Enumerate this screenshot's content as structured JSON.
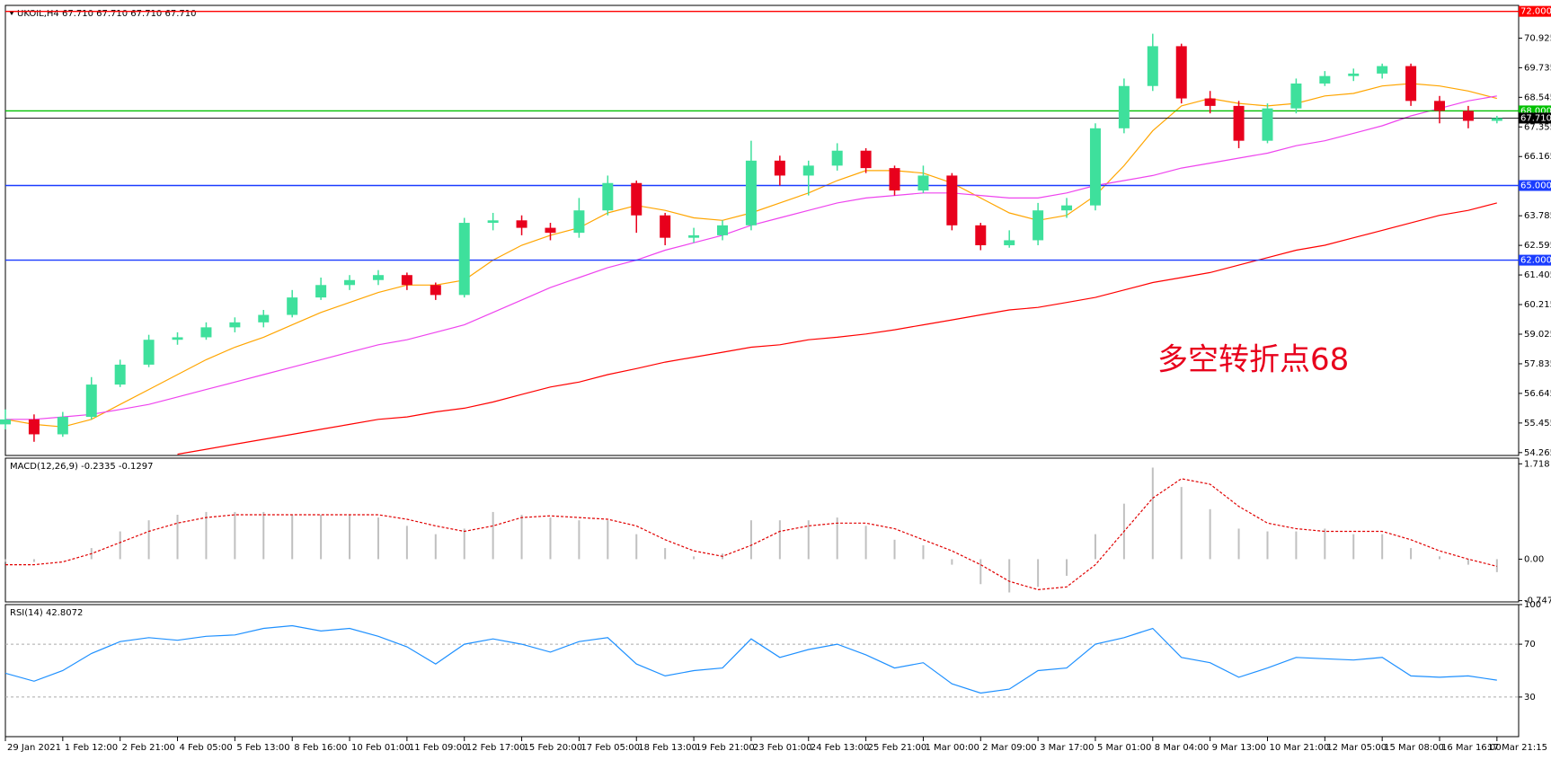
{
  "chart_data": [
    {
      "type": "candlestick",
      "title": "UKOIL,H4  67.710 67.710 67.710 67.710",
      "categories": [
        "29 Jan 2021",
        null,
        "1 Feb 12:00",
        null,
        "2 Feb 21:00",
        null,
        "4 Feb 05:00",
        null,
        "5 Feb 13:00",
        null,
        "8 Feb 16:00",
        null,
        "10 Feb 01:00",
        null,
        "11 Feb 09:00",
        null,
        "12 Feb 17:00",
        null,
        "15 Feb 20:00",
        null,
        "17 Feb 05:00",
        null,
        "18 Feb 13:00",
        null,
        "19 Feb 21:00",
        null,
        "23 Feb 01:00",
        null,
        "24 Feb 13:00",
        null,
        "25 Feb 21:00",
        null,
        "1 Mar 00:00",
        null,
        "2 Mar 09:00",
        null,
        "3 Mar 17:00",
        null,
        "5 Mar 01:00",
        null,
        "8 Mar 04:00",
        null,
        "9 Mar 13:00",
        null,
        "10 Mar 21:00",
        null,
        "12 Mar 05:00",
        null,
        "15 Mar 08:00",
        null,
        "16 Mar 16:00",
        null,
        "17 Mar 21:15"
      ],
      "open": [
        55.4,
        55.6,
        55.0,
        55.7,
        57.0,
        57.8,
        58.8,
        58.9,
        59.3,
        59.5,
        59.8,
        60.5,
        61.0,
        61.2,
        61.4,
        61.0,
        60.6,
        63.5,
        63.6,
        63.3,
        63.1,
        64.0,
        65.1,
        63.8,
        62.9,
        63.0,
        63.4,
        66.0,
        65.4,
        65.8,
        66.4,
        65.7,
        64.8,
        65.4,
        63.4,
        62.6,
        62.8,
        64.0,
        64.2,
        67.3,
        69.0,
        70.6,
        68.5,
        68.2,
        66.8,
        68.1,
        69.1,
        69.4,
        69.5,
        69.8,
        68.4,
        68.0,
        67.6
      ],
      "high": [
        56.0,
        55.8,
        55.9,
        57.3,
        58.0,
        59.0,
        59.1,
        59.5,
        59.7,
        60.0,
        60.8,
        61.3,
        61.4,
        61.6,
        61.5,
        61.1,
        63.7,
        63.9,
        63.8,
        63.5,
        64.5,
        65.4,
        65.2,
        63.9,
        63.3,
        63.6,
        66.8,
        66.2,
        66.0,
        66.7,
        66.5,
        65.8,
        65.8,
        65.5,
        63.5,
        63.2,
        64.3,
        64.5,
        67.5,
        69.3,
        71.1,
        70.7,
        68.8,
        68.4,
        68.3,
        69.3,
        69.6,
        69.7,
        69.9,
        69.9,
        68.6,
        68.2,
        67.8
      ],
      "low": [
        55.2,
        54.7,
        54.9,
        55.6,
        56.9,
        57.7,
        58.6,
        58.8,
        59.1,
        59.3,
        59.7,
        60.4,
        60.8,
        61.0,
        60.8,
        60.4,
        60.5,
        63.2,
        63.0,
        62.8,
        62.9,
        63.8,
        63.1,
        62.6,
        62.7,
        62.8,
        63.2,
        65.0,
        64.6,
        65.6,
        65.5,
        64.6,
        64.7,
        63.2,
        62.4,
        62.5,
        62.6,
        63.7,
        64.0,
        67.1,
        68.8,
        68.3,
        67.9,
        66.5,
        66.7,
        67.9,
        69.0,
        69.2,
        69.3,
        68.2,
        67.5,
        67.3,
        67.5
      ],
      "close": [
        55.6,
        55.0,
        55.7,
        57.0,
        57.8,
        58.8,
        58.9,
        59.3,
        59.5,
        59.8,
        60.5,
        61.0,
        61.2,
        61.4,
        61.0,
        60.6,
        63.5,
        63.6,
        63.3,
        63.1,
        64.0,
        65.1,
        63.8,
        62.9,
        63.0,
        63.4,
        66.0,
        65.4,
        65.8,
        66.4,
        65.7,
        64.8,
        65.4,
        63.4,
        62.6,
        62.8,
        64.0,
        64.2,
        67.3,
        69.0,
        70.6,
        68.5,
        68.2,
        66.8,
        68.1,
        69.1,
        69.4,
        69.5,
        69.8,
        68.4,
        68.0,
        67.6,
        67.71
      ],
      "up_color": "#3ee09c",
      "down_color": "#e8001c",
      "lines": [
        {
          "color": "#ffa500",
          "values": [
            55.6,
            55.4,
            55.3,
            55.6,
            56.2,
            56.8,
            57.4,
            58.0,
            58.5,
            58.9,
            59.4,
            59.9,
            60.3,
            60.7,
            61.0,
            61.0,
            61.2,
            62.0,
            62.6,
            63.0,
            63.3,
            63.9,
            64.2,
            64.0,
            63.7,
            63.6,
            63.9,
            64.3,
            64.7,
            65.2,
            65.6,
            65.6,
            65.5,
            65.1,
            64.5,
            63.9,
            63.6,
            63.8,
            64.6,
            65.8,
            67.2,
            68.2,
            68.5,
            68.3,
            68.2,
            68.3,
            68.6,
            68.7,
            69.0,
            69.1,
            69.0,
            68.8,
            68.5
          ]
        },
        {
          "color": "#ee44ee",
          "values": [
            55.6,
            55.6,
            55.7,
            55.8,
            56.0,
            56.2,
            56.5,
            56.8,
            57.1,
            57.4,
            57.7,
            58.0,
            58.3,
            58.6,
            58.8,
            59.1,
            59.4,
            59.9,
            60.4,
            60.9,
            61.3,
            61.7,
            62.0,
            62.4,
            62.7,
            63.0,
            63.4,
            63.7,
            64.0,
            64.3,
            64.5,
            64.6,
            64.7,
            64.7,
            64.6,
            64.5,
            64.5,
            64.7,
            65.0,
            65.2,
            65.4,
            65.7,
            65.9,
            66.1,
            66.3,
            66.6,
            66.8,
            67.1,
            67.4,
            67.8,
            68.1,
            68.4,
            68.6
          ]
        },
        {
          "color": "#ff0000",
          "values": [
            null,
            null,
            null,
            null,
            null,
            null,
            54.2,
            54.4,
            54.6,
            54.8,
            55.0,
            55.2,
            55.4,
            55.6,
            55.7,
            55.9,
            56.05,
            56.3,
            56.6,
            56.9,
            57.1,
            57.4,
            57.64,
            57.9,
            58.1,
            58.3,
            58.5,
            58.6,
            58.8,
            58.9,
            59.03,
            59.2,
            59.4,
            59.6,
            59.8,
            60.0,
            60.1,
            60.3,
            60.5,
            60.8,
            61.1,
            61.3,
            61.5,
            61.8,
            62.1,
            62.4,
            62.6,
            62.9,
            63.2,
            63.5,
            63.8,
            64.0,
            64.3
          ]
        }
      ],
      "levels": [
        {
          "value": 72,
          "label": "72.000",
          "color": "#ff0000"
        },
        {
          "value": 68,
          "label": "68.000",
          "color": "#00c000"
        },
        {
          "value": 65,
          "label": "65.000",
          "color": "#1a3cff"
        },
        {
          "value": 62,
          "label": "62.000",
          "color": "#1a3cff"
        },
        {
          "value": 67.71,
          "label": "67.710",
          "color": "#000000"
        }
      ],
      "annotation": "多空转折点68",
      "annotation_color": "#e8001c",
      "ylim": [
        54.15,
        72.24
      ],
      "yticks": [
        70.925,
        69.735,
        68.545,
        67.355,
        66.165,
        64.975,
        63.785,
        62.595,
        61.405,
        60.215,
        59.025,
        57.835,
        56.645,
        55.455,
        54.265
      ]
    },
    {
      "type": "macd",
      "title": "MACD(12,26,9) -0.2335 -0.1297",
      "values": [
        -0.05,
        -0.05,
        0.0,
        0.2,
        0.5,
        0.7,
        0.8,
        0.85,
        0.85,
        0.85,
        0.8,
        0.8,
        0.8,
        0.75,
        0.6,
        0.45,
        0.55,
        0.85,
        0.8,
        0.75,
        0.7,
        0.7,
        0.45,
        0.2,
        0.05,
        0.1,
        0.7,
        0.7,
        0.7,
        0.75,
        0.6,
        0.35,
        0.25,
        -0.1,
        -0.45,
        -0.6,
        -0.5,
        -0.3,
        0.45,
        1.0,
        1.65,
        1.3,
        0.9,
        0.55,
        0.5,
        0.5,
        0.55,
        0.45,
        0.45,
        0.2,
        0.05,
        -0.1,
        -0.2335
      ],
      "signal": [
        -0.1,
        -0.1,
        -0.05,
        0.1,
        0.3,
        0.5,
        0.65,
        0.75,
        0.8,
        0.8,
        0.8,
        0.8,
        0.8,
        0.8,
        0.72,
        0.6,
        0.5,
        0.6,
        0.75,
        0.78,
        0.75,
        0.72,
        0.6,
        0.35,
        0.15,
        0.05,
        0.25,
        0.5,
        0.6,
        0.65,
        0.65,
        0.55,
        0.35,
        0.15,
        -0.1,
        -0.4,
        -0.55,
        -0.5,
        -0.1,
        0.5,
        1.1,
        1.45,
        1.35,
        0.95,
        0.65,
        0.55,
        0.5,
        0.5,
        0.5,
        0.35,
        0.15,
        0.0,
        -0.1297
      ],
      "color": "#c0c0c0",
      "signal_color": "#e00000",
      "ylim": [
        -0.77,
        1.82
      ],
      "yticks": [
        1.718,
        {
          "value": 0,
          "label": "0.00"
        },
        -0.7475
      ]
    },
    {
      "type": "line",
      "title": "RSI(14) 42.8072",
      "values": [
        48,
        42,
        50,
        63,
        72,
        75,
        73,
        76,
        77,
        82,
        84,
        80,
        82,
        76,
        68,
        55,
        70,
        74,
        70,
        64,
        72,
        75,
        55,
        46,
        50,
        52,
        74,
        60,
        66,
        70,
        62,
        52,
        56,
        40,
        33,
        36,
        50,
        52,
        70,
        75,
        82,
        60,
        56,
        45,
        52,
        60,
        59,
        58,
        60,
        46,
        45,
        46,
        42.8072
      ],
      "color": "#1e90ff",
      "ylim": [
        0,
        100
      ],
      "yticks": [
        100,
        70,
        30
      ]
    }
  ]
}
